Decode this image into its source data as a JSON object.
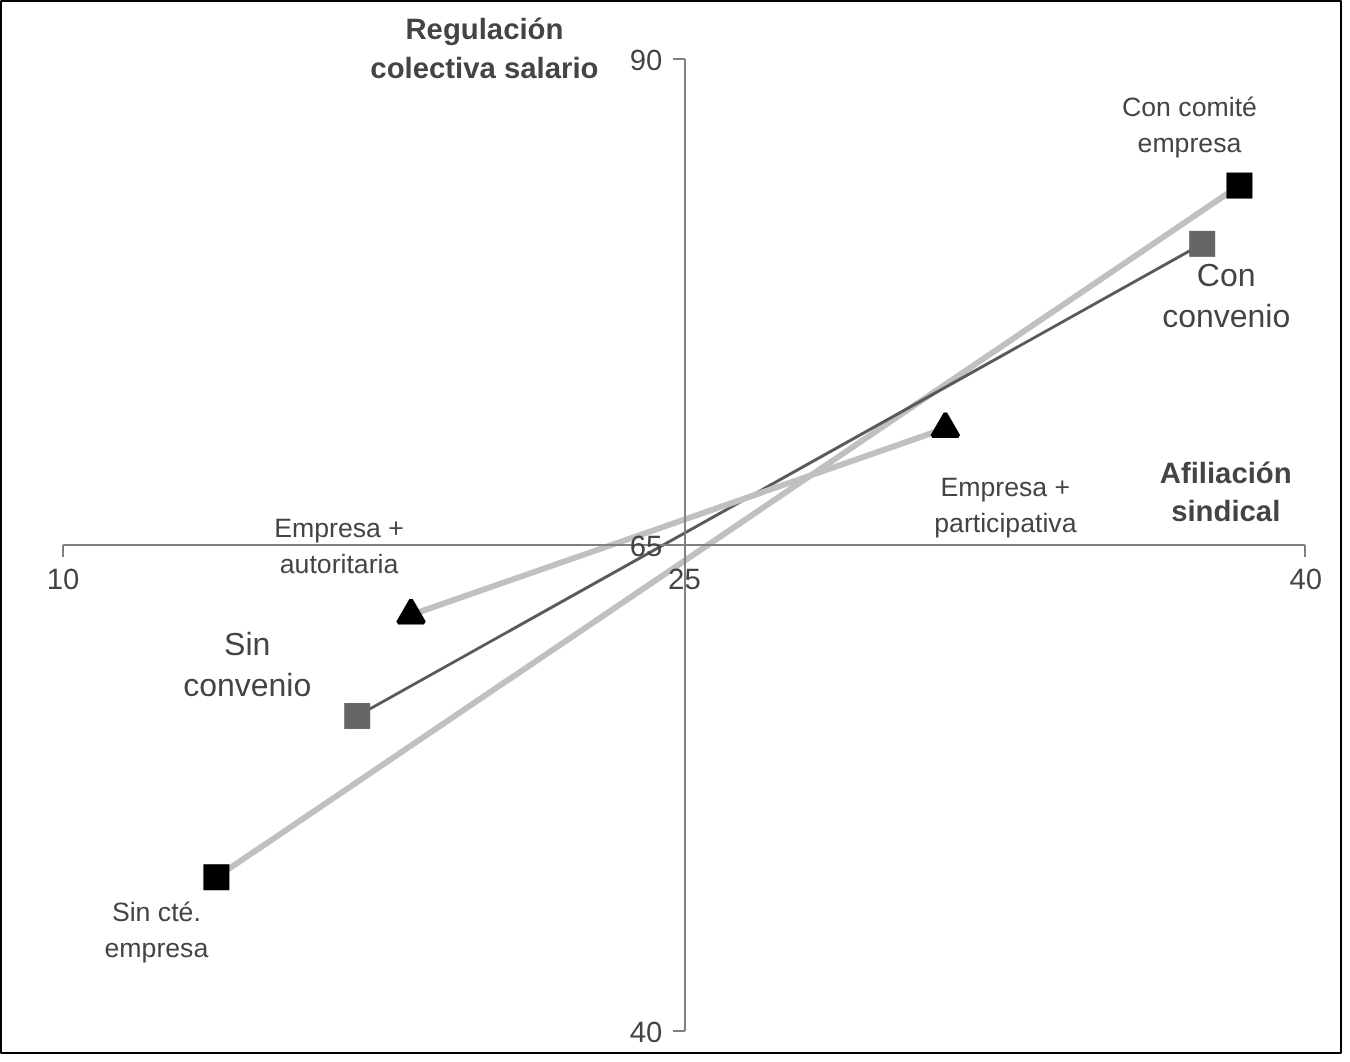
{
  "chart_data": {
    "type": "line",
    "xlabel": "Afiliación sindical",
    "ylabel": "Regulación colectiva salario",
    "xlim": [
      10,
      40
    ],
    "ylim": [
      40,
      90
    ],
    "xticks": [
      10,
      25,
      40
    ],
    "yticks": [
      40,
      65,
      90
    ],
    "series": [
      {
        "x": [
          13.7,
          38.4
        ],
        "values": [
          47.9,
          83.5
        ],
        "color": "#c0c0c0",
        "colors": [
          "#000000",
          "#000000"
        ],
        "marker": "square"
      },
      {
        "x": [
          17.1,
          37.5
        ],
        "values": [
          56.2,
          80.5
        ],
        "color": "#595959",
        "colors": [
          "#666666",
          "#666666"
        ],
        "marker": "square"
      },
      {
        "x": [
          18.4,
          31.3
        ],
        "values": [
          61.4,
          71.0
        ],
        "color": "#c0c0c0",
        "colors": [
          "#000000",
          "#000000"
        ],
        "marker": "triangle"
      }
    ],
    "annotations": [
      {
        "text": "Con comité empresa",
        "x": 38.4,
        "y": 83.5
      },
      {
        "text": "Con convenio",
        "x": 37.5,
        "y": 80.5
      },
      {
        "text": "Empresa + participativa",
        "x": 31.3,
        "y": 71.0
      },
      {
        "text": "Empresa + autoritaria",
        "x": 18.4,
        "y": 61.4
      },
      {
        "text": "Sin convenio",
        "x": 17.1,
        "y": 56.2
      },
      {
        "text": "Sin cté. empresa",
        "x": 13.7,
        "y": 47.9
      }
    ]
  }
}
